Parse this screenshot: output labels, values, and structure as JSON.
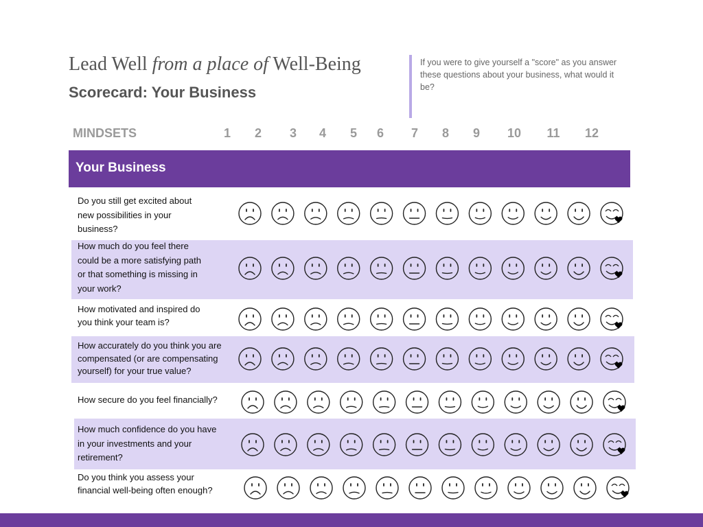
{
  "header": {
    "title": {
      "part1": "Lead Well",
      "part2": "from a place of",
      "part3": "Well-Being"
    },
    "subtitle": "Scorecard: Your Business",
    "note": "If you were to give yourself a \"score\" as you answer these questions about your business, what would it be?"
  },
  "table": {
    "column_header": "MINDSETS",
    "scale": [
      "1",
      "2",
      "3",
      "4",
      "5",
      "6",
      "7",
      "8",
      "9",
      "10",
      "11",
      "12"
    ],
    "section": "Your Business",
    "rows": [
      {
        "question": [
          "Do you still get excited about",
          "new possibilities in your",
          "business?"
        ]
      },
      {
        "question": [
          "How much do you feel there",
          "could be a more satisfying path",
          "or that something is missing in",
          "your work?"
        ]
      },
      {
        "question": [
          "How motivated and inspired do",
          "you think your team is?"
        ]
      },
      {
        "question": [
          "How accurately do you think you are",
          "compensated (or are compensating",
          "yourself) for your true value?"
        ]
      },
      {
        "question": [
          "How secure do you feel financially?"
        ]
      },
      {
        "question": [
          "How much confidence do you have",
          "in your investments and your",
          "retirement?"
        ]
      },
      {
        "question": [
          "Do you think you assess your",
          "financial well-being often enough?"
        ]
      }
    ]
  }
}
